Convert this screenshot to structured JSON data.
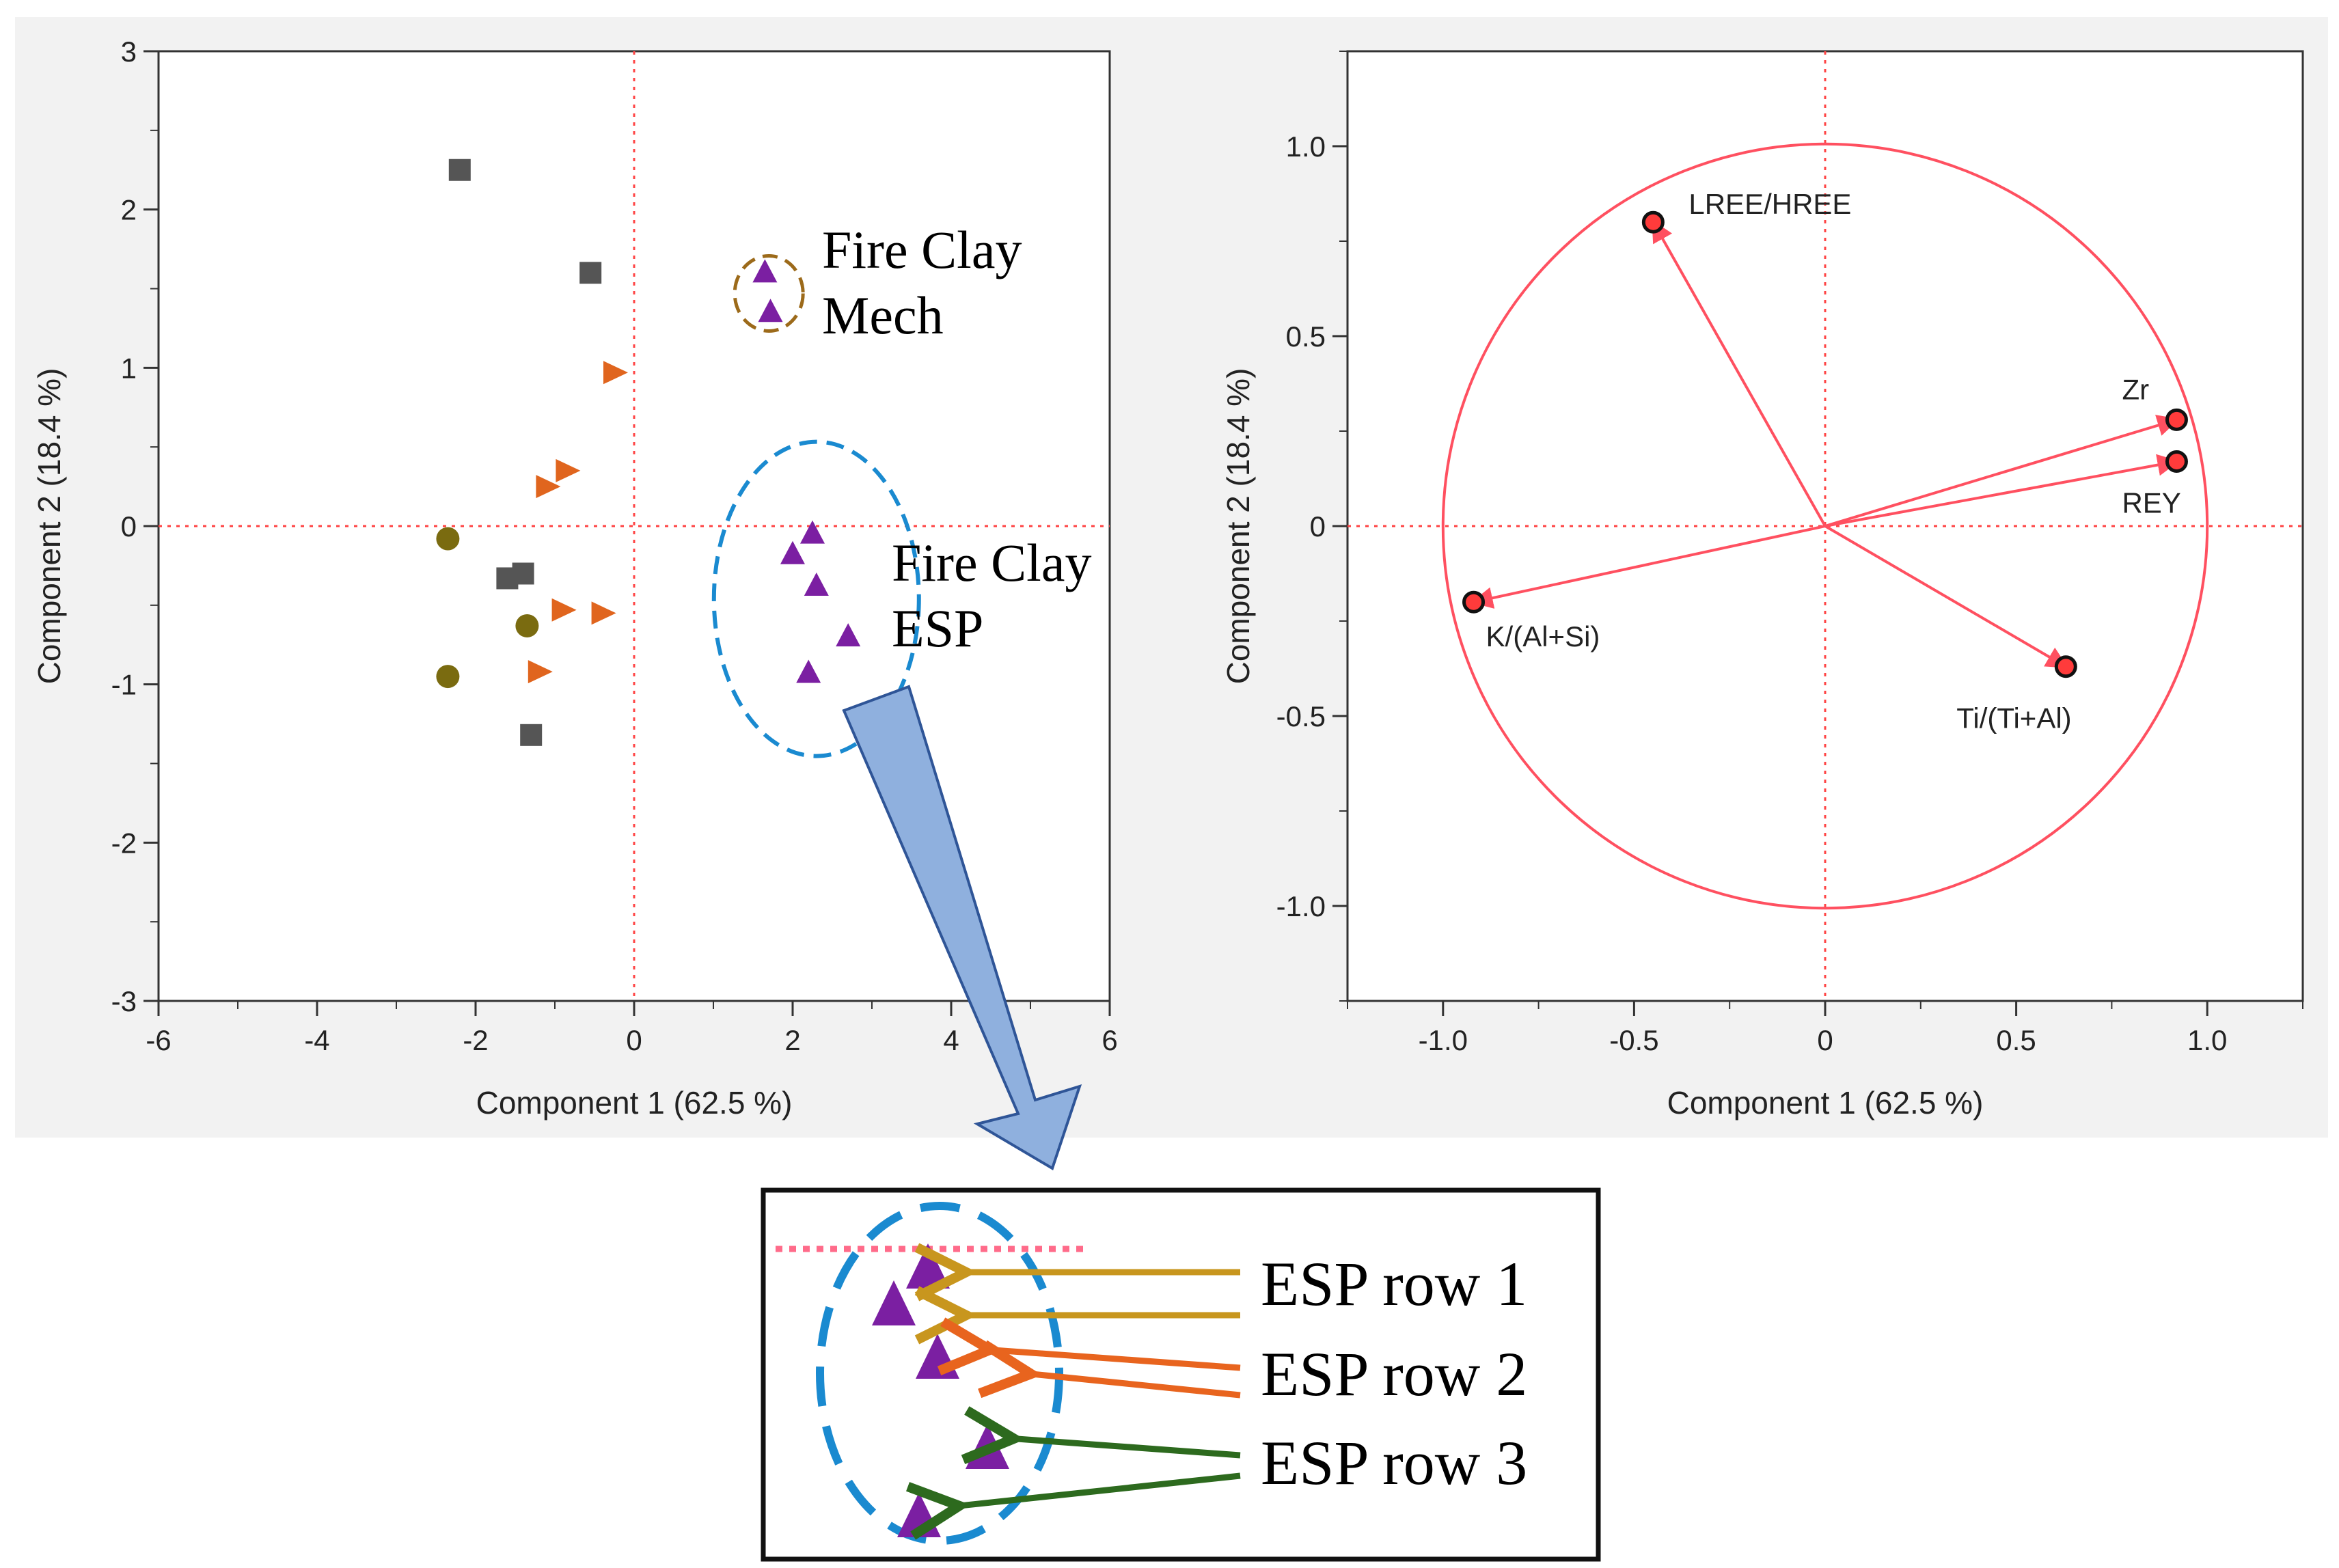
{
  "chart_data": [
    {
      "type": "scatter",
      "name": "scores",
      "xlabel": "Component 1  (62.5 %)",
      "ylabel": "Component 2  (18.4 %)",
      "xlim": [
        -6,
        6
      ],
      "ylim": [
        -3,
        3
      ],
      "xticks": [
        "-6",
        "-4",
        "-2",
        "0",
        "2",
        "4",
        "6"
      ],
      "yticks": [
        "3",
        "2",
        "1",
        "0",
        "-1",
        "-2",
        "-3"
      ],
      "reference_lines": {
        "x": 0,
        "y": 0,
        "style": "dotted",
        "color": "#ff3b3b"
      },
      "series": [
        {
          "marker": "square",
          "color": "#555555",
          "points": [
            [
              -2.2,
              2.25
            ],
            [
              -0.55,
              1.6
            ],
            [
              -1.6,
              -0.33
            ],
            [
              -1.4,
              -0.3
            ],
            [
              -1.3,
              -1.32
            ]
          ]
        },
        {
          "marker": "triangle-right",
          "color": "#e0651e",
          "points": [
            [
              -0.25,
              0.97
            ],
            [
              -1.1,
              0.25
            ],
            [
              -0.85,
              0.35
            ],
            [
              -0.9,
              -0.53
            ],
            [
              -0.4,
              -0.55
            ],
            [
              -1.2,
              -0.92
            ]
          ]
        },
        {
          "marker": "circle",
          "color": "#7a6b10",
          "points": [
            [
              -2.35,
              -0.08
            ],
            [
              -1.35,
              -0.63
            ],
            [
              -2.35,
              -0.95
            ]
          ]
        },
        {
          "marker": "triangle-up",
          "color": "#7b1fa2",
          "points": [
            [
              1.65,
              1.6
            ],
            [
              1.72,
              1.35
            ],
            [
              2.25,
              -0.05
            ],
            [
              2.0,
              -0.18
            ],
            [
              2.3,
              -0.38
            ],
            [
              2.7,
              -0.7
            ],
            [
              2.2,
              -0.93
            ]
          ]
        }
      ],
      "annotations": [
        {
          "lines": [
            "Fire Clay",
            "Mech"
          ]
        },
        {
          "lines": [
            "Fire Clay",
            "ESP"
          ]
        }
      ]
    },
    {
      "type": "scatter",
      "name": "loadings",
      "xlabel": "Component 1  (62.5 %)",
      "ylabel": "Component 2  (18.4 %)",
      "xlim": [
        -1.25,
        1.25
      ],
      "ylim": [
        -1.25,
        1.25
      ],
      "xticks": [
        "-1.0",
        "-0.5",
        "0",
        "0.5",
        "1.0"
      ],
      "yticks": [
        "1.0",
        "0.5",
        "0",
        "-0.5",
        "-1.0"
      ],
      "unit_circle": true,
      "color": "#ff5060",
      "vectors": [
        {
          "label": "LREE/HREE",
          "x": -0.45,
          "y": 0.8
        },
        {
          "label": "Zr",
          "x": 0.92,
          "y": 0.28
        },
        {
          "label": "REY",
          "x": 0.92,
          "y": 0.17
        },
        {
          "label": "K/(Al+Si)",
          "x": -0.92,
          "y": -0.2
        },
        {
          "label": "Ti/(Ti+Al)",
          "x": 0.63,
          "y": -0.37
        }
      ]
    }
  ],
  "zoom_inset": {
    "labels": [
      "ESP row 1",
      "ESP row 2",
      "ESP row 3"
    ],
    "arrow_colors": [
      "#c8961e",
      "#e8641e",
      "#2d6a1e"
    ]
  }
}
